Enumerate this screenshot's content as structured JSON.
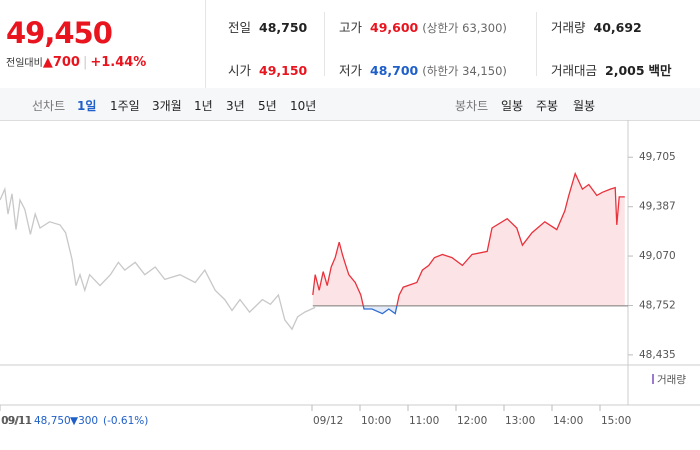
{
  "quote": {
    "price": "49,450",
    "change_label": "전일대비",
    "change_arrow": "▲",
    "change": "700",
    "change_pct": "+1.44%"
  },
  "info": [
    {
      "label": "전일",
      "value": "48,750"
    },
    {
      "label": "고가",
      "value": "49,600",
      "sub": "(상한가 63,300)"
    },
    {
      "label": "거래량",
      "value": "40,692"
    },
    {
      "label": "시가",
      "value": "49,150"
    },
    {
      "label": "저가",
      "value": "48,700",
      "sub": "(하한가 34,150)"
    },
    {
      "label": "거래대금",
      "value": "2,005",
      "unit": "백만"
    }
  ],
  "tabs": {
    "line_label": "선차트",
    "line_periods": [
      "1일",
      "1주일",
      "3개월",
      "1년",
      "3년",
      "5년",
      "10년"
    ],
    "candle_label": "봉차트",
    "candle_periods": [
      "일봉",
      "주봉",
      "월봉"
    ]
  },
  "footer": {
    "date": "09/11",
    "close": "48,750",
    "change": "▼300",
    "pct": "(-0.61%)"
  },
  "chart_data": {
    "type": "line",
    "volume_label": "거래량",
    "baseline": 48750,
    "xlim": [
      -390,
      395
    ],
    "ylim": [
      48370,
      49880
    ],
    "xticks": [
      {
        "value": -390,
        "label": "09/11"
      },
      {
        "value": 0,
        "label": "09/12"
      },
      {
        "value": 60,
        "label": "10:00"
      },
      {
        "value": 120,
        "label": "11:00"
      },
      {
        "value": 180,
        "label": "12:00"
      },
      {
        "value": 240,
        "label": "13:00"
      },
      {
        "value": 300,
        "label": "14:00"
      },
      {
        "value": 360,
        "label": "15:00"
      }
    ],
    "yticks": [
      {
        "value": 49705,
        "label": "49,705"
      },
      {
        "value": 49387,
        "label": "49,387"
      },
      {
        "value": 49070,
        "label": "49,070"
      },
      {
        "value": 48752,
        "label": "48,752"
      },
      {
        "value": 48435,
        "label": "48,435"
      }
    ],
    "series": [
      {
        "name": "09/11",
        "color": "#c8c8c8",
        "x": [
          -390,
          -384,
          -380,
          -375,
          -370,
          -365,
          -359,
          -352,
          -346,
          -340,
          -328,
          -315,
          -308,
          -300,
          -295,
          -290,
          -284,
          -278,
          -265,
          -252,
          -242,
          -234,
          -221,
          -209,
          -196,
          -184,
          -165,
          -146,
          -134,
          -121,
          -109,
          -100,
          -90,
          -78,
          -62,
          -52,
          -42,
          -34,
          -25,
          -18,
          -9,
          4
        ],
        "values": [
          49430,
          49500,
          49340,
          49470,
          49240,
          49430,
          49370,
          49210,
          49340,
          49250,
          49290,
          49270,
          49220,
          49050,
          48880,
          48950,
          48850,
          48950,
          48880,
          48950,
          49030,
          48980,
          49030,
          48950,
          49000,
          48920,
          48950,
          48900,
          48980,
          48850,
          48790,
          48720,
          48790,
          48710,
          48790,
          48760,
          48820,
          48660,
          48600,
          48680,
          48710,
          48740
        ]
      },
      {
        "name": "09/12",
        "color": "#e8323c",
        "down_color": "#2f6ecf",
        "x": [
          1,
          4,
          9,
          14,
          19,
          24,
          29,
          34,
          38,
          41,
          46,
          54,
          61,
          65,
          75,
          88,
          96,
          104,
          109,
          114,
          131,
          138,
          146,
          153,
          163,
          175,
          188,
          200,
          219,
          225,
          244,
          256,
          263,
          275,
          291,
          306,
          316,
          321,
          329,
          338,
          346,
          356,
          363,
          373,
          379,
          381,
          384,
          391
        ],
        "values": [
          48820,
          48950,
          48850,
          48970,
          48880,
          49000,
          49060,
          49160,
          49080,
          49030,
          48950,
          48900,
          48820,
          48730,
          48730,
          48700,
          48730,
          48700,
          48820,
          48870,
          48900,
          48980,
          49010,
          49060,
          49080,
          49060,
          49010,
          49080,
          49100,
          49250,
          49310,
          49250,
          49140,
          49220,
          49290,
          49240,
          49360,
          49460,
          49600,
          49500,
          49530,
          49460,
          49480,
          49500,
          49510,
          49270,
          49450,
          49450
        ]
      }
    ]
  }
}
